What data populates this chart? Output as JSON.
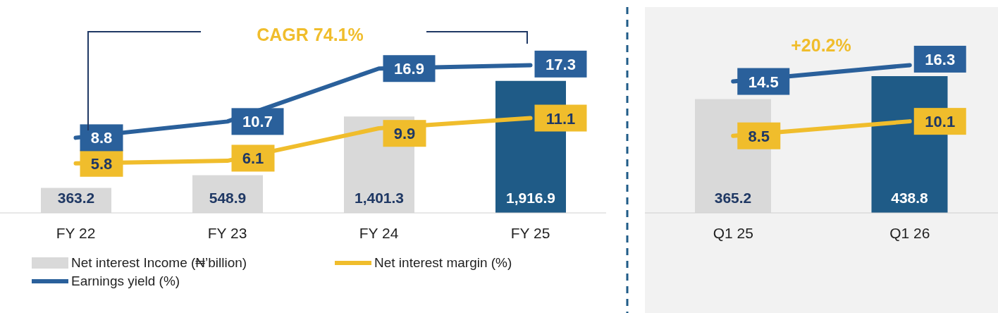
{
  "chart_data": [
    {
      "type": "bar",
      "categories": [
        "FY 22",
        "FY 23",
        "FY 24",
        "FY 25"
      ],
      "annotations": [
        "CAGR 74.1%"
      ],
      "data_labels": true,
      "legend": "bottom",
      "series": [
        {
          "name": "Net interest Income (₦’billion)",
          "type": "bar",
          "colors": [
            "#d9d9d9",
            "#d9d9d9",
            "#d9d9d9",
            "#1f5b87"
          ],
          "values": [
            363.2,
            548.9,
            1401.3,
            1916.9
          ],
          "value_labels": [
            "363.2",
            "548.9",
            "1,401.3",
            "1,916.9"
          ]
        },
        {
          "name": "Net interest margin (%)",
          "type": "line",
          "axis": "y2",
          "color": "#f0bd2c",
          "values": [
            5.8,
            6.1,
            9.9,
            11.1
          ]
        },
        {
          "name": "Earnings yield (%)",
          "type": "line",
          "axis": "y2",
          "color": "#2a609b",
          "values": [
            8.8,
            10.7,
            16.9,
            17.3
          ]
        }
      ]
    },
    {
      "type": "bar",
      "categories": [
        "Q1 25",
        "Q1 26"
      ],
      "annotations": [
        "+20.2%"
      ],
      "data_labels": true,
      "series": [
        {
          "type": "bar",
          "colors": [
            "#d9d9d9",
            "#1f5b87"
          ],
          "values": [
            365.2,
            438.8
          ]
        },
        {
          "type": "line",
          "axis": "y2",
          "color": "#f0bd2c",
          "values": [
            8.5,
            10.1
          ]
        },
        {
          "type": "line",
          "axis": "y2",
          "color": "#2a609b",
          "values": [
            14.5,
            16.3
          ]
        }
      ]
    }
  ]
}
